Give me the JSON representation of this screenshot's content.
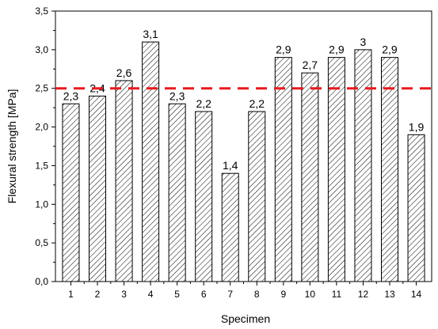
{
  "chart_data": {
    "type": "bar",
    "title": "",
    "xlabel": "Specimen",
    "ylabel": "Flexural strength [MPa]",
    "categories": [
      "1",
      "2",
      "3",
      "4",
      "5",
      "6",
      "7",
      "8",
      "9",
      "10",
      "11",
      "12",
      "13",
      "14"
    ],
    "values": [
      2.3,
      2.4,
      2.6,
      3.1,
      2.3,
      2.2,
      1.4,
      2.2,
      2.9,
      2.7,
      2.9,
      3.0,
      2.9,
      1.9
    ],
    "data_labels": [
      "2,3",
      "2,4",
      "2,6",
      "3,1",
      "2,3",
      "2,2",
      "1,4",
      "2,2",
      "2,9",
      "2,7",
      "2,9",
      "3",
      "2,9",
      "1,9"
    ],
    "ylim": [
      0,
      3.5
    ],
    "yticks": [
      0,
      0.5,
      1.0,
      1.5,
      2.0,
      2.5,
      3.0,
      3.5
    ],
    "ytick_labels": [
      "0,0",
      "0,5",
      "1,0",
      "1,5",
      "2,0",
      "2,5",
      "3,0",
      "3,5"
    ],
    "reference_line": {
      "value": 2.5,
      "color": "#e8191f",
      "style": "dashed"
    },
    "bar_fill": "hatched",
    "grid": false,
    "colors": {
      "bars": "#000000",
      "hatch": "#000000",
      "reference": "#e8191f"
    }
  }
}
